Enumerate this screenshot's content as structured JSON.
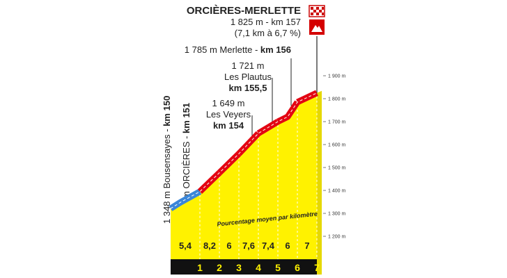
{
  "chart_data": {
    "type": "area",
    "title": "ORCIÈRES-MERLETTE",
    "summary": [
      "1 825 m - km 157",
      "(7,1 km à 6,7 %)"
    ],
    "annotations": [
      {
        "text": "1 785 m Merlette - ",
        "km": "km 156"
      },
      {
        "lines": [
          "1 721 m",
          "Les Plautus"
        ],
        "km": "km 155,5"
      },
      {
        "lines": [
          "1 649 m",
          "Les Veyers"
        ],
        "km": "km 154"
      },
      {
        "text": "1 348 m Bousensayes - ",
        "km": "km 150"
      },
      {
        "text": "1 395 m ORCIÈRES - ",
        "km": "km 151"
      }
    ],
    "x": [
      149.5,
      150,
      151,
      152,
      153,
      154,
      155,
      155.5,
      156,
      157
    ],
    "values": [
      1321,
      1348,
      1395,
      1477,
      1560,
      1649,
      1700,
      1721,
      1785,
      1825
    ],
    "color": "#fff200",
    "xlim": [
      149.5,
      157
    ],
    "ylim": [
      1100,
      1900
    ],
    "xticks": [
      {
        "value": 151,
        "label": "1"
      },
      {
        "value": 152,
        "label": "2"
      },
      {
        "value": 153,
        "label": "3"
      },
      {
        "value": 154,
        "label": "4"
      },
      {
        "value": 155,
        "label": "5"
      },
      {
        "value": 156,
        "label": "6"
      },
      {
        "value": 157,
        "label": "7"
      }
    ],
    "yticks": [
      {
        "value": 1200,
        "label": "1 200 m"
      },
      {
        "value": 1300,
        "label": "1 300 m"
      },
      {
        "value": 1400,
        "label": "1 400 m"
      },
      {
        "value": 1500,
        "label": "1 500 m"
      },
      {
        "value": 1600,
        "label": "1 600 m"
      },
      {
        "value": 1700,
        "label": "1 700 m"
      },
      {
        "value": 1800,
        "label": "1 800 m"
      },
      {
        "value": 1900,
        "label": "1 900 m"
      }
    ],
    "gradients": {
      "label": "Pourcentage moyen par kilomètre",
      "values": [
        5.4,
        8.2,
        6,
        7.6,
        7.4,
        6,
        7
      ],
      "value_labels": [
        "5,4",
        "8,2",
        "6",
        "7,6",
        "7,4",
        "6",
        "7"
      ],
      "colors": [
        "#3a86d8",
        "#e30613",
        "#e30613",
        "#e30613",
        "#e30613",
        "#e30613",
        "#e30613"
      ]
    }
  }
}
